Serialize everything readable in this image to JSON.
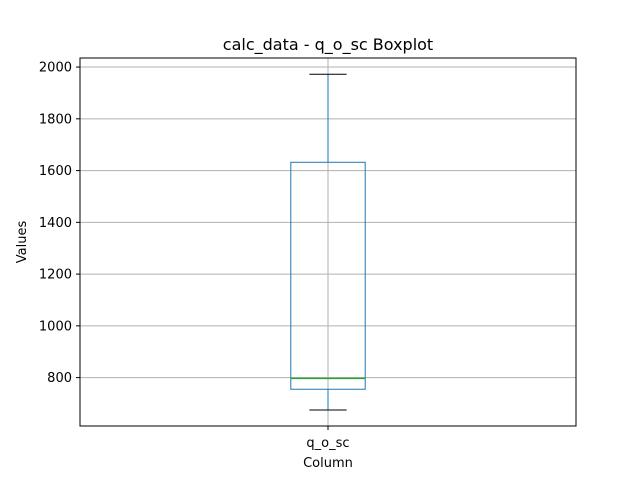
{
  "chart_data": {
    "type": "boxplot",
    "title": "calc_data - q_o_sc Boxplot",
    "xlabel": "Column",
    "ylabel": "Values",
    "categories": [
      "q_o_sc"
    ],
    "boxes": [
      {
        "name": "q_o_sc",
        "whisker_low": 675,
        "q1": 755,
        "median": 797,
        "q3": 1632,
        "whisker_high": 1972
      }
    ],
    "yticks": [
      800,
      1000,
      1200,
      1400,
      1600,
      1800,
      2000
    ],
    "ylim": [
      613,
      2035
    ],
    "grid": true,
    "colors": {
      "box": "#1f77b4",
      "median": "#2ca02c",
      "cap": "#000000",
      "grid": "#b0b0b0"
    }
  }
}
